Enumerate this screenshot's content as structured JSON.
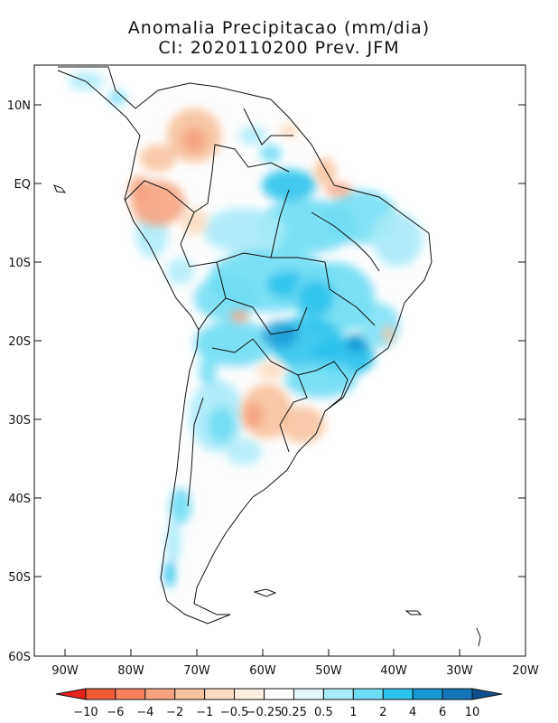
{
  "title": "Anomalia Precipitacao (mm/dia)",
  "subtitle": "CI: 2020110200 Prev. JFM",
  "y_ticks": [
    "10N",
    "EQ",
    "10S",
    "20S",
    "30S",
    "40S",
    "50S",
    "60S"
  ],
  "x_ticks": [
    "90W",
    "80W",
    "70W",
    "60W",
    "50W",
    "40W",
    "30W",
    "20W"
  ],
  "colorbar": {
    "labels": [
      "-10",
      "-6",
      "-4",
      "-2",
      "-1",
      "-0.5",
      "-0.25",
      "0.25",
      "0.5",
      "1",
      "2",
      "4",
      "6",
      "10"
    ],
    "colors": [
      "#e8231c",
      "#f05a35",
      "#f5825c",
      "#f6a47f",
      "#f8c4a0",
      "#fbdcc2",
      "#fdf0e2",
      "#ffffff",
      "#e3f7fb",
      "#a9ebf8",
      "#6fdcf5",
      "#2cc3ec",
      "#1598d4",
      "#1476b8",
      "#0f4f8f"
    ]
  }
}
